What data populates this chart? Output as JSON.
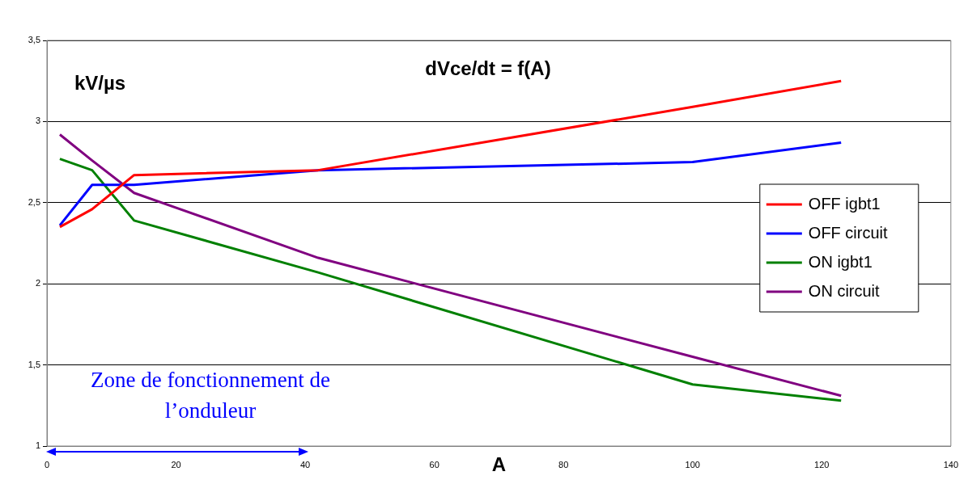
{
  "chart_data": {
    "type": "line",
    "title": "dVce/dt = f(A)",
    "xlabel": "A",
    "ylabel": "kV/µs",
    "x": [
      2,
      7,
      13.5,
      42,
      100,
      123
    ],
    "series": [
      {
        "name": "OFF igbt1",
        "color": "#ff0000",
        "values": [
          2.35,
          2.46,
          2.67,
          2.7,
          3.09,
          3.25
        ]
      },
      {
        "name": "OFF circuit",
        "color": "#0000ff",
        "values": [
          2.36,
          2.61,
          2.61,
          2.7,
          2.75,
          2.87
        ]
      },
      {
        "name": "ON igbt1",
        "color": "#008000",
        "values": [
          2.77,
          2.7,
          2.39,
          2.07,
          1.38,
          1.28
        ]
      },
      {
        "name": "ON circuit",
        "color": "#800080",
        "values": [
          2.92,
          2.76,
          2.56,
          2.16,
          1.55,
          1.31
        ]
      }
    ],
    "xlim": [
      0,
      140
    ],
    "xticks": [
      0,
      20,
      40,
      60,
      80,
      100,
      120,
      140
    ],
    "ylim": [
      1,
      3.5
    ],
    "yticks": [
      1,
      {
        "value": 1.5,
        "label": "1,5"
      },
      2,
      {
        "value": 2.5,
        "label": "2,5"
      },
      3,
      {
        "value": 3.5,
        "label": "3,5"
      }
    ],
    "annotations": [
      "Zone de fonctionnement de l’onduleur"
    ],
    "grid": "y",
    "legend": "right",
    "marker": "none",
    "line_style": "solid"
  }
}
